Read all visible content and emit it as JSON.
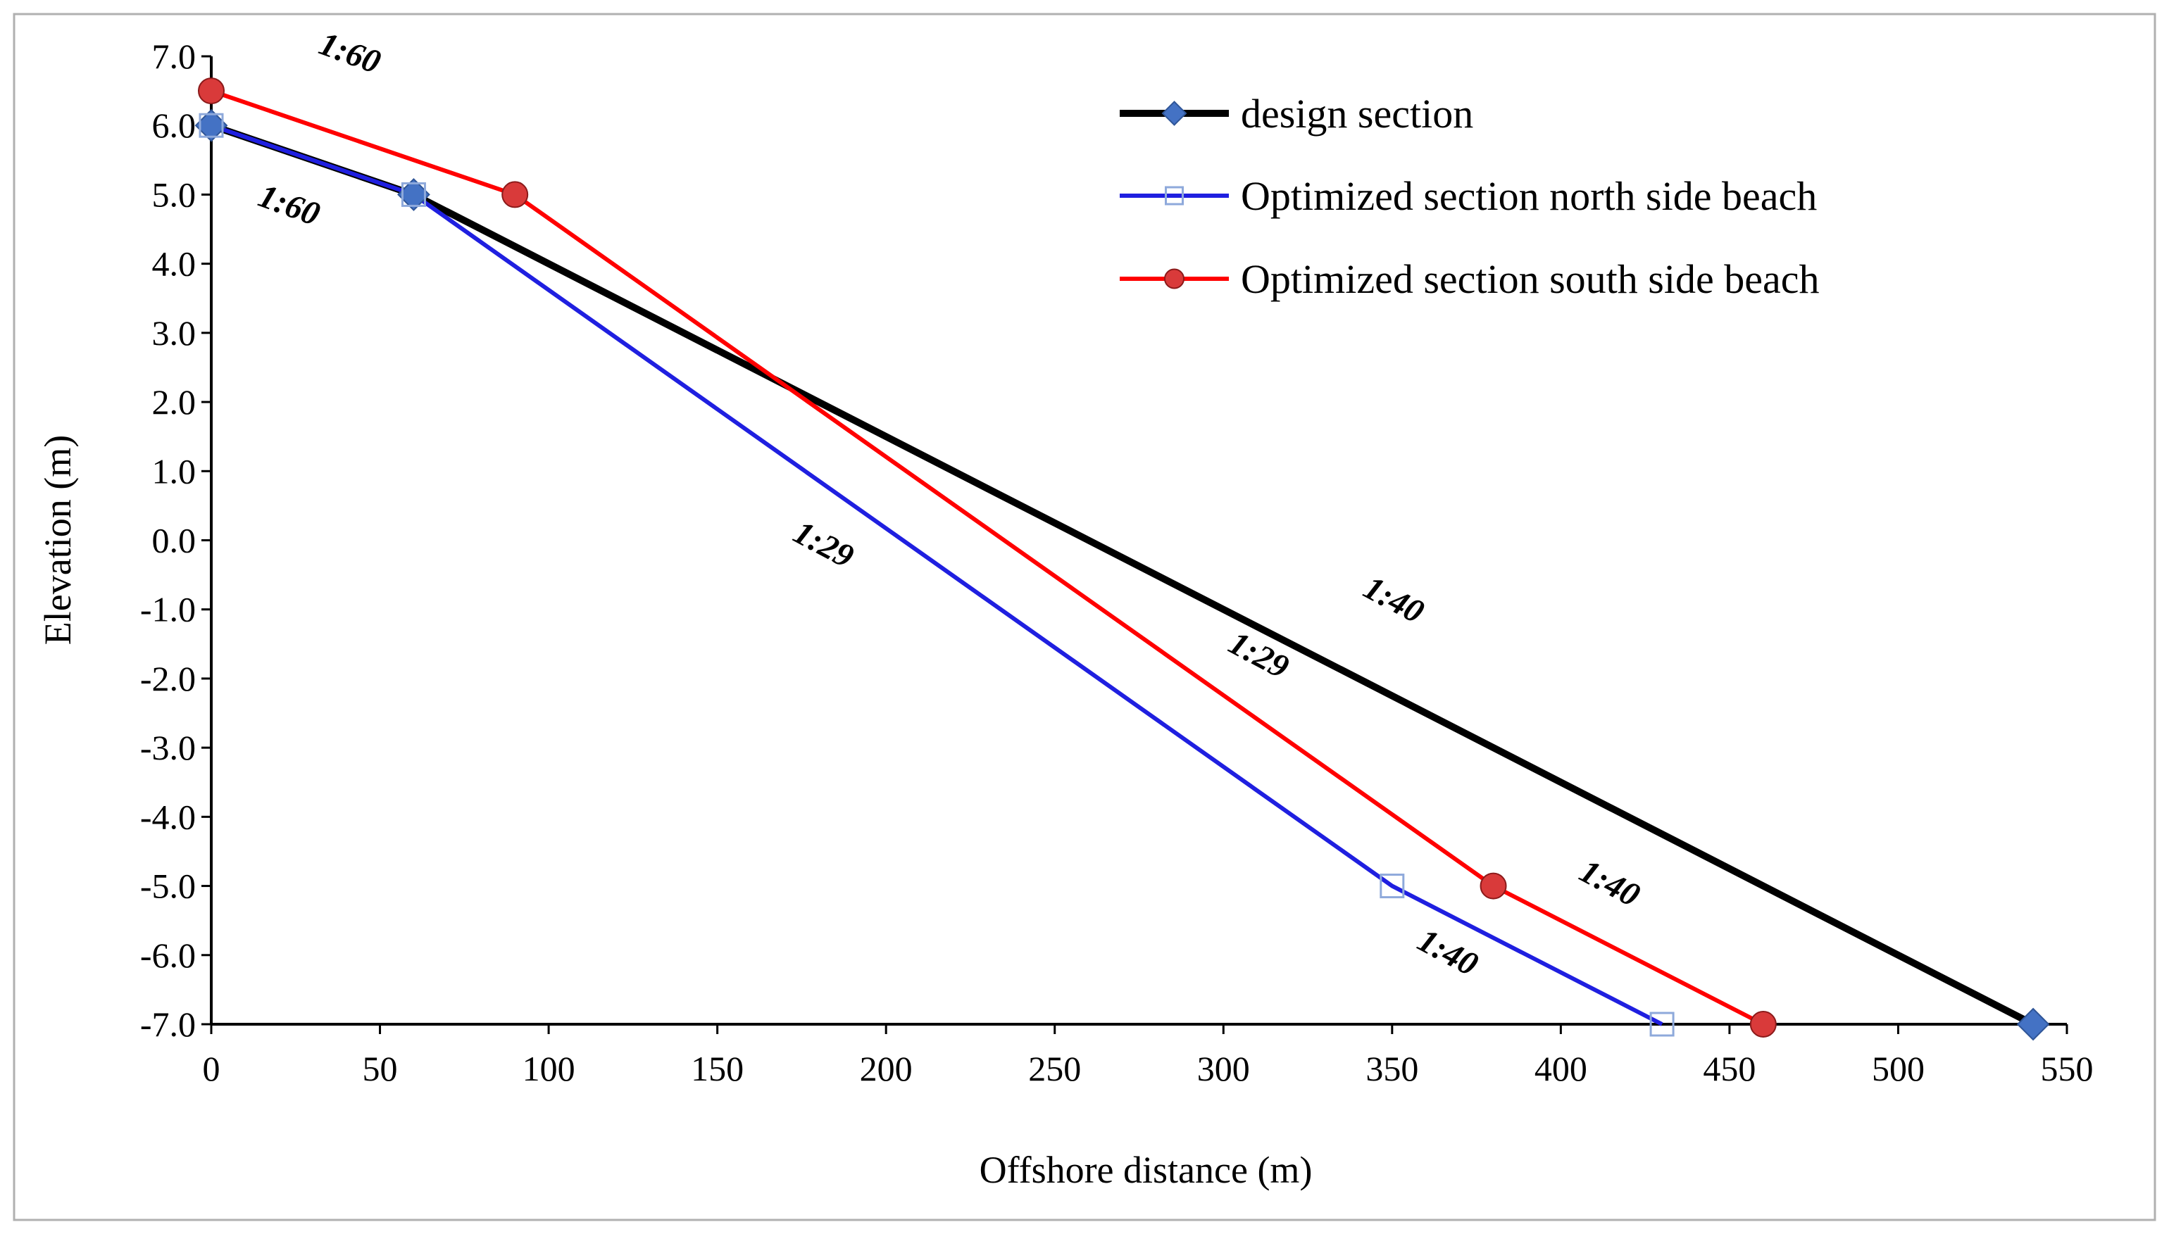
{
  "chart_data": {
    "type": "line",
    "title": "",
    "xlabel": "Offshore distance (m)",
    "ylabel": "Elevation (m)",
    "xlim": [
      0,
      550
    ],
    "ylim": [
      -7,
      7
    ],
    "x_ticks": [
      "0",
      "50",
      "100",
      "150",
      "200",
      "250",
      "300",
      "350",
      "400",
      "450",
      "500",
      "550"
    ],
    "y_ticks": [
      "7.0",
      "6.0",
      "5.0",
      "4.0",
      "3.0",
      "2.0",
      "1.0",
      "0.0",
      "-1.0",
      "-2.0",
      "-3.0",
      "-4.0",
      "-5.0",
      "-6.0",
      "-7.0"
    ],
    "legend_position": "top-right",
    "series": [
      {
        "name": "design section",
        "color": "#000000",
        "marker": "diamond",
        "marker_color": "#4472C4",
        "points": [
          [
            0,
            6
          ],
          [
            60,
            5
          ],
          [
            540,
            -7
          ]
        ]
      },
      {
        "name": "Optimized section north side beach",
        "color": "#1F1FE0",
        "marker": "open-square",
        "marker_color": "#8EA9DB",
        "points": [
          [
            0,
            6
          ],
          [
            60,
            5
          ],
          [
            350,
            -5
          ],
          [
            430,
            -7
          ]
        ]
      },
      {
        "name": "Optimized section south side beach",
        "color": "#FF0000",
        "marker": "circle",
        "marker_color": "#D93A3A",
        "points": [
          [
            0,
            6.5
          ],
          [
            90,
            5
          ],
          [
            380,
            -5
          ],
          [
            460,
            -7
          ]
        ]
      }
    ],
    "annotations": [
      {
        "text": "1:60",
        "x": 40,
        "y": 6.9,
        "angle": 20
      },
      {
        "text": "1:60",
        "x": 22,
        "y": 4.7,
        "angle": 20
      },
      {
        "text": "1:29",
        "x": 180,
        "y": -0.2,
        "angle": 28
      },
      {
        "text": "1:40",
        "x": 349,
        "y": -1.0,
        "angle": 28
      },
      {
        "text": "1:29",
        "x": 309,
        "y": -1.8,
        "angle": 28
      },
      {
        "text": "1:40",
        "x": 413,
        "y": -5.1,
        "angle": 28
      },
      {
        "text": "1:40",
        "x": 365,
        "y": -6.1,
        "angle": 28
      }
    ]
  }
}
